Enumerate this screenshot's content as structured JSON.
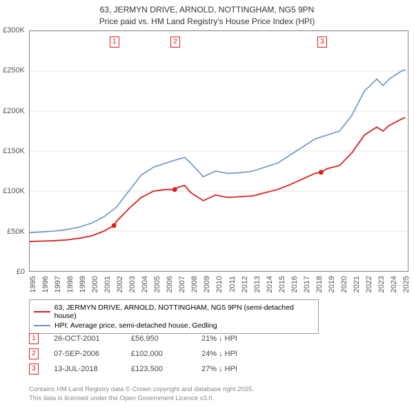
{
  "title": {
    "line1": "63, JERMYN DRIVE, ARNOLD, NOTTINGHAM, NG5 9PN",
    "line2": "Price paid vs. HM Land Registry's House Price Index (HPI)"
  },
  "chart": {
    "type": "line",
    "background_color": "#ffffff",
    "border_color": "#888888",
    "grid_color": "#e0e0e0",
    "x_domain": [
      1995,
      2025.5
    ],
    "y_domain": [
      0,
      300000
    ],
    "y_ticks": [
      {
        "v": 0,
        "label": "£0"
      },
      {
        "v": 50000,
        "label": "£50K"
      },
      {
        "v": 100000,
        "label": "£100K"
      },
      {
        "v": 150000,
        "label": "£150K"
      },
      {
        "v": 200000,
        "label": "£200K"
      },
      {
        "v": 250000,
        "label": "£250K"
      },
      {
        "v": 300000,
        "label": "£300K"
      }
    ],
    "x_ticks": [
      1995,
      1996,
      1997,
      1998,
      1999,
      2000,
      2001,
      2002,
      2003,
      2004,
      2005,
      2006,
      2007,
      2008,
      2009,
      2010,
      2011,
      2012,
      2013,
      2014,
      2015,
      2016,
      2017,
      2018,
      2019,
      2020,
      2021,
      2022,
      2023,
      2024,
      2025
    ],
    "series": [
      {
        "name": "hpi",
        "color": "#6a8fc5",
        "width": 1.6,
        "data": [
          [
            1995,
            48000
          ],
          [
            1996,
            49000
          ],
          [
            1997,
            50000
          ],
          [
            1998,
            52000
          ],
          [
            1999,
            55000
          ],
          [
            2000,
            60000
          ],
          [
            2001,
            68000
          ],
          [
            2002,
            80000
          ],
          [
            2003,
            100000
          ],
          [
            2004,
            120000
          ],
          [
            2005,
            130000
          ],
          [
            2006,
            135000
          ],
          [
            2007,
            140000
          ],
          [
            2007.5,
            142000
          ],
          [
            2008,
            135000
          ],
          [
            2009,
            118000
          ],
          [
            2010,
            125000
          ],
          [
            2011,
            122000
          ],
          [
            2012,
            123000
          ],
          [
            2013,
            125000
          ],
          [
            2014,
            130000
          ],
          [
            2015,
            135000
          ],
          [
            2016,
            145000
          ],
          [
            2017,
            155000
          ],
          [
            2018,
            165000
          ],
          [
            2019,
            170000
          ],
          [
            2020,
            175000
          ],
          [
            2021,
            195000
          ],
          [
            2022,
            225000
          ],
          [
            2023,
            240000
          ],
          [
            2023.5,
            232000
          ],
          [
            2024,
            240000
          ],
          [
            2025,
            250000
          ],
          [
            2025.3,
            252000
          ]
        ]
      },
      {
        "name": "price_paid",
        "color": "#d91e1e",
        "width": 1.8,
        "data": [
          [
            1995,
            37000
          ],
          [
            1996,
            37500
          ],
          [
            1997,
            38000
          ],
          [
            1998,
            39000
          ],
          [
            1999,
            41000
          ],
          [
            2000,
            44000
          ],
          [
            2001,
            50000
          ],
          [
            2001.8,
            56950
          ],
          [
            2002,
            62000
          ],
          [
            2003,
            78000
          ],
          [
            2004,
            92000
          ],
          [
            2005,
            100000
          ],
          [
            2006,
            102000
          ],
          [
            2006.7,
            102000
          ],
          [
            2007,
            105000
          ],
          [
            2007.5,
            107000
          ],
          [
            2008,
            98000
          ],
          [
            2009,
            88000
          ],
          [
            2010,
            95000
          ],
          [
            2011,
            92000
          ],
          [
            2012,
            93000
          ],
          [
            2013,
            94000
          ],
          [
            2014,
            98000
          ],
          [
            2015,
            102000
          ],
          [
            2016,
            108000
          ],
          [
            2017,
            115000
          ],
          [
            2018,
            122000
          ],
          [
            2018.5,
            123500
          ],
          [
            2019,
            128000
          ],
          [
            2020,
            132000
          ],
          [
            2021,
            148000
          ],
          [
            2022,
            170000
          ],
          [
            2023,
            180000
          ],
          [
            2023.5,
            175000
          ],
          [
            2024,
            182000
          ],
          [
            2025,
            190000
          ],
          [
            2025.3,
            192000
          ]
        ]
      }
    ],
    "sale_markers": [
      {
        "num": "1",
        "year": 2001.8,
        "price": 56950,
        "color": "#d91e1e"
      },
      {
        "num": "2",
        "year": 2006.7,
        "price": 102000,
        "color": "#d91e1e"
      },
      {
        "num": "3",
        "year": 2018.5,
        "price": 123500,
        "color": "#d91e1e"
      }
    ],
    "marker_top_y": 8
  },
  "legend": {
    "rows": [
      {
        "color": "#d91e1e",
        "label": "63, JERMYN DRIVE, ARNOLD, NOTTINGHAM, NG5 9PN (semi-detached house)"
      },
      {
        "color": "#6a8fc5",
        "label": "HPI: Average price, semi-detached house, Gedling"
      }
    ]
  },
  "transactions": [
    {
      "num": "1",
      "color": "#d91e1e",
      "date": "26-OCT-2001",
      "price": "£56,950",
      "delta": "21% ↓ HPI"
    },
    {
      "num": "2",
      "color": "#d91e1e",
      "date": "07-SEP-2006",
      "price": "£102,000",
      "delta": "24% ↓ HPI"
    },
    {
      "num": "3",
      "color": "#d91e1e",
      "date": "13-JUL-2018",
      "price": "£123,500",
      "delta": "27% ↓ HPI"
    }
  ],
  "footer": {
    "line1": "Contains HM Land Registry data © Crown copyright and database right 2025.",
    "line2": "This data is licensed under the Open Government Licence v3.0."
  }
}
